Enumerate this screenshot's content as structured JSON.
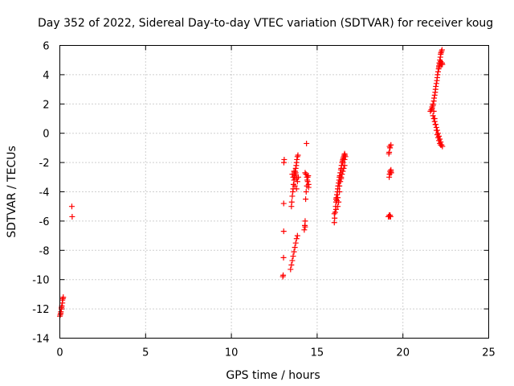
{
  "chart_data": {
    "type": "scatter",
    "title": "Day 352 of 2022, Sidereal Day-to-day VTEC variation (SDTVAR) for receiver koug",
    "xlabel": "GPS time / hours",
    "ylabel": "SDTVAR / TECUs",
    "xlim": [
      0,
      25
    ],
    "ylim": [
      -14,
      6
    ],
    "xticks": [
      0,
      5,
      10,
      15,
      20,
      25
    ],
    "yticks": [
      -14,
      -12,
      -10,
      -8,
      -6,
      -4,
      -2,
      0,
      2,
      4,
      6
    ],
    "grid": true,
    "marker": "+",
    "color": "#ff0000",
    "series": [
      {
        "name": "SDTVAR",
        "x": [
          0.0,
          0.03,
          0.06,
          0.09,
          0.12,
          0.15,
          0.18,
          0.2,
          0.05,
          0.1,
          0.15,
          0.7,
          0.72,
          13.0,
          13.02,
          13.04,
          13.05,
          13.05,
          13.06,
          13.08,
          13.45,
          13.5,
          13.55,
          13.6,
          13.65,
          13.7,
          13.75,
          13.8,
          13.85,
          13.5,
          13.52,
          13.55,
          13.58,
          13.6,
          13.62,
          13.65,
          13.68,
          13.7,
          13.72,
          13.75,
          13.78,
          13.8,
          13.82,
          13.85,
          13.88,
          13.55,
          13.6,
          13.65,
          13.7,
          13.75,
          13.8,
          13.85,
          13.9,
          13.7,
          13.8,
          14.25,
          14.28,
          14.3,
          14.33,
          14.36,
          14.4,
          14.42,
          14.45,
          14.48,
          14.5,
          14.3,
          14.35,
          14.4,
          14.45,
          14.5,
          14.3,
          14.38,
          16.0,
          16.02,
          16.05,
          16.08,
          16.1,
          16.12,
          16.15,
          16.18,
          16.2,
          16.22,
          16.25,
          16.28,
          16.3,
          16.32,
          16.35,
          16.38,
          16.4,
          16.42,
          16.45,
          16.48,
          16.5,
          16.52,
          16.55,
          16.58,
          16.6,
          16.62,
          16.65,
          16.3,
          16.35,
          16.4,
          16.45,
          16.5,
          16.55,
          16.6,
          16.1,
          16.15,
          16.2,
          16.25,
          16.0,
          16.1,
          16.2,
          16.3,
          16.4,
          16.5,
          16.6,
          19.15,
          19.2,
          19.22,
          19.25,
          19.28,
          19.3,
          19.32,
          19.2,
          19.22,
          19.25,
          19.28,
          19.3,
          19.2,
          19.25,
          19.3,
          19.18,
          19.22,
          21.6,
          21.65,
          21.7,
          21.75,
          21.8,
          21.82,
          21.85,
          21.88,
          21.9,
          21.92,
          21.95,
          21.98,
          22.0,
          22.02,
          22.05,
          22.08,
          22.1,
          22.12,
          22.15,
          22.18,
          22.2,
          22.22,
          22.25,
          22.28,
          22.1,
          22.12,
          22.15,
          22.18,
          22.2,
          22.22,
          22.25,
          22.28,
          22.3,
          21.7,
          21.75,
          21.8,
          21.85,
          21.9,
          21.95,
          22.0,
          22.05,
          22.1,
          22.15,
          22.2,
          21.75,
          21.8,
          21.85,
          21.9,
          21.95,
          22.0,
          22.05,
          22.1,
          22.15,
          22.2,
          22.25,
          22.3
        ],
        "y": [
          -12.5,
          -12.4,
          -12.2,
          -12.0,
          -11.8,
          -11.6,
          -11.3,
          -11.2,
          -12.3,
          -11.9,
          -11.4,
          -5.0,
          -5.7,
          -9.8,
          -9.7,
          -8.5,
          -6.7,
          -4.8,
          -2.0,
          -1.8,
          -9.3,
          -9.0,
          -8.7,
          -8.4,
          -8.1,
          -7.8,
          -7.5,
          -7.2,
          -7.0,
          -5.0,
          -4.7,
          -4.3,
          -4.0,
          -3.8,
          -3.5,
          -3.2,
          -3.0,
          -2.8,
          -2.6,
          -2.4,
          -2.2,
          -2.0,
          -1.8,
          -1.6,
          -1.5,
          -2.8,
          -3.0,
          -2.6,
          -2.9,
          -2.7,
          -3.1,
          -3.3,
          -3.0,
          -3.6,
          -3.8,
          -6.6,
          -6.3,
          -6.0,
          -4.5,
          -4.0,
          -3.6,
          -3.2,
          -3.0,
          -2.9,
          -3.5,
          -2.7,
          -2.8,
          -3.0,
          -3.3,
          -3.7,
          -6.4,
          -0.7,
          -6.1,
          -5.8,
          -5.4,
          -5.0,
          -4.7,
          -4.4,
          -4.2,
          -4.0,
          -3.8,
          -3.6,
          -3.4,
          -3.2,
          -3.0,
          -2.9,
          -2.7,
          -2.5,
          -2.4,
          -2.2,
          -2.0,
          -1.9,
          -1.8,
          -1.7,
          -1.6,
          -1.5,
          -1.4,
          -1.5,
          -1.6,
          -3.6,
          -3.3,
          -3.1,
          -2.8,
          -2.6,
          -2.4,
          -2.2,
          -4.5,
          -4.6,
          -4.4,
          -4.7,
          -5.5,
          -5.2,
          -5.0,
          -4.0,
          -3.0,
          -2.0,
          -1.8,
          -5.7,
          -5.6,
          -5.7,
          -5.6,
          -5.7,
          -2.6,
          -2.7,
          -3.0,
          -2.8,
          -2.6,
          -2.7,
          -2.5,
          -1.3,
          -1.0,
          -0.8,
          -1.4,
          -0.9,
          1.5,
          1.6,
          1.8,
          2.0,
          2.2,
          2.4,
          2.6,
          2.8,
          3.0,
          3.2,
          3.4,
          3.6,
          3.8,
          4.0,
          4.2,
          4.4,
          4.6,
          4.8,
          5.0,
          5.2,
          5.4,
          5.5,
          5.6,
          5.7,
          4.5,
          4.6,
          4.7,
          4.8,
          4.9,
          4.8,
          4.7,
          4.8,
          4.7,
          1.7,
          1.9,
          1.5,
          1.0,
          0.6,
          0.2,
          -0.1,
          -0.3,
          -0.5,
          -0.7,
          -0.8,
          1.2,
          1.0,
          0.8,
          0.6,
          0.4,
          0.2,
          0.0,
          -0.2,
          -0.4,
          -0.6,
          -0.8,
          -0.9
        ]
      }
    ]
  }
}
